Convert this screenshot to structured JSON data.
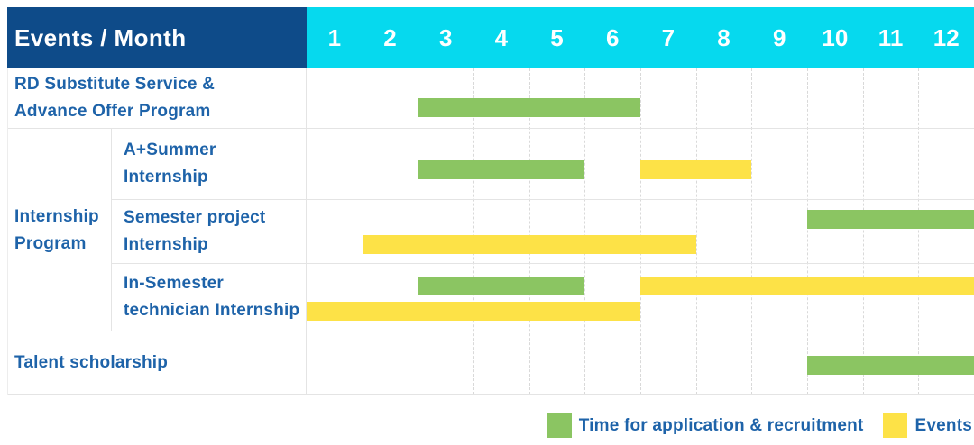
{
  "header": {
    "title": "Events / Month",
    "months": [
      "1",
      "2",
      "3",
      "4",
      "5",
      "6",
      "7",
      "8",
      "9",
      "10",
      "11",
      "12"
    ]
  },
  "colors": {
    "navy": "#0e4b89",
    "cyan": "#06d9ee",
    "green": "#8bc562",
    "yellow": "#fde247",
    "text_blue": "#1e63a9"
  },
  "legend": [
    {
      "swatch": "green",
      "label": "Time for application & recruitment"
    },
    {
      "swatch": "yellow",
      "label": "Events"
    }
  ],
  "chart_data": {
    "type": "gantt",
    "x_unit": "month",
    "x_range": [
      1,
      12
    ],
    "legend": {
      "application": "Time for application & recruitment",
      "event": "Events"
    },
    "rows": [
      {
        "label": "RD Substitute Service &\nAdvance Offer Program",
        "group": null,
        "bars": [
          {
            "kind": "application",
            "start_month": 3,
            "end_month": 6,
            "lane": 0
          }
        ]
      },
      {
        "label": "A+Summer\nInternship",
        "group": "Internship\nProgram",
        "bars": [
          {
            "kind": "application",
            "start_month": 3,
            "end_month": 5,
            "lane": 0
          },
          {
            "kind": "event",
            "start_month": 7,
            "end_month": 8,
            "lane": 0
          }
        ]
      },
      {
        "label": "Semester project\nInternship",
        "group": "Internship\nProgram",
        "bars": [
          {
            "kind": "application",
            "start_month": 10,
            "end_month": 12,
            "lane": 0
          },
          {
            "kind": "event",
            "start_month": 2,
            "end_month": 7,
            "lane": 1
          }
        ]
      },
      {
        "label": "In-Semester\ntechnician Internship",
        "group": "Internship\nProgram",
        "bars": [
          {
            "kind": "application",
            "start_month": 3,
            "end_month": 5,
            "lane": 0
          },
          {
            "kind": "event",
            "start_month": 7,
            "end_month": 12,
            "lane": 0
          },
          {
            "kind": "event",
            "start_month": 1,
            "end_month": 6,
            "lane": 1
          }
        ]
      },
      {
        "label": "Talent scholarship",
        "group": null,
        "bars": [
          {
            "kind": "application",
            "start_month": 10,
            "end_month": 12,
            "lane": 0
          }
        ]
      }
    ]
  }
}
